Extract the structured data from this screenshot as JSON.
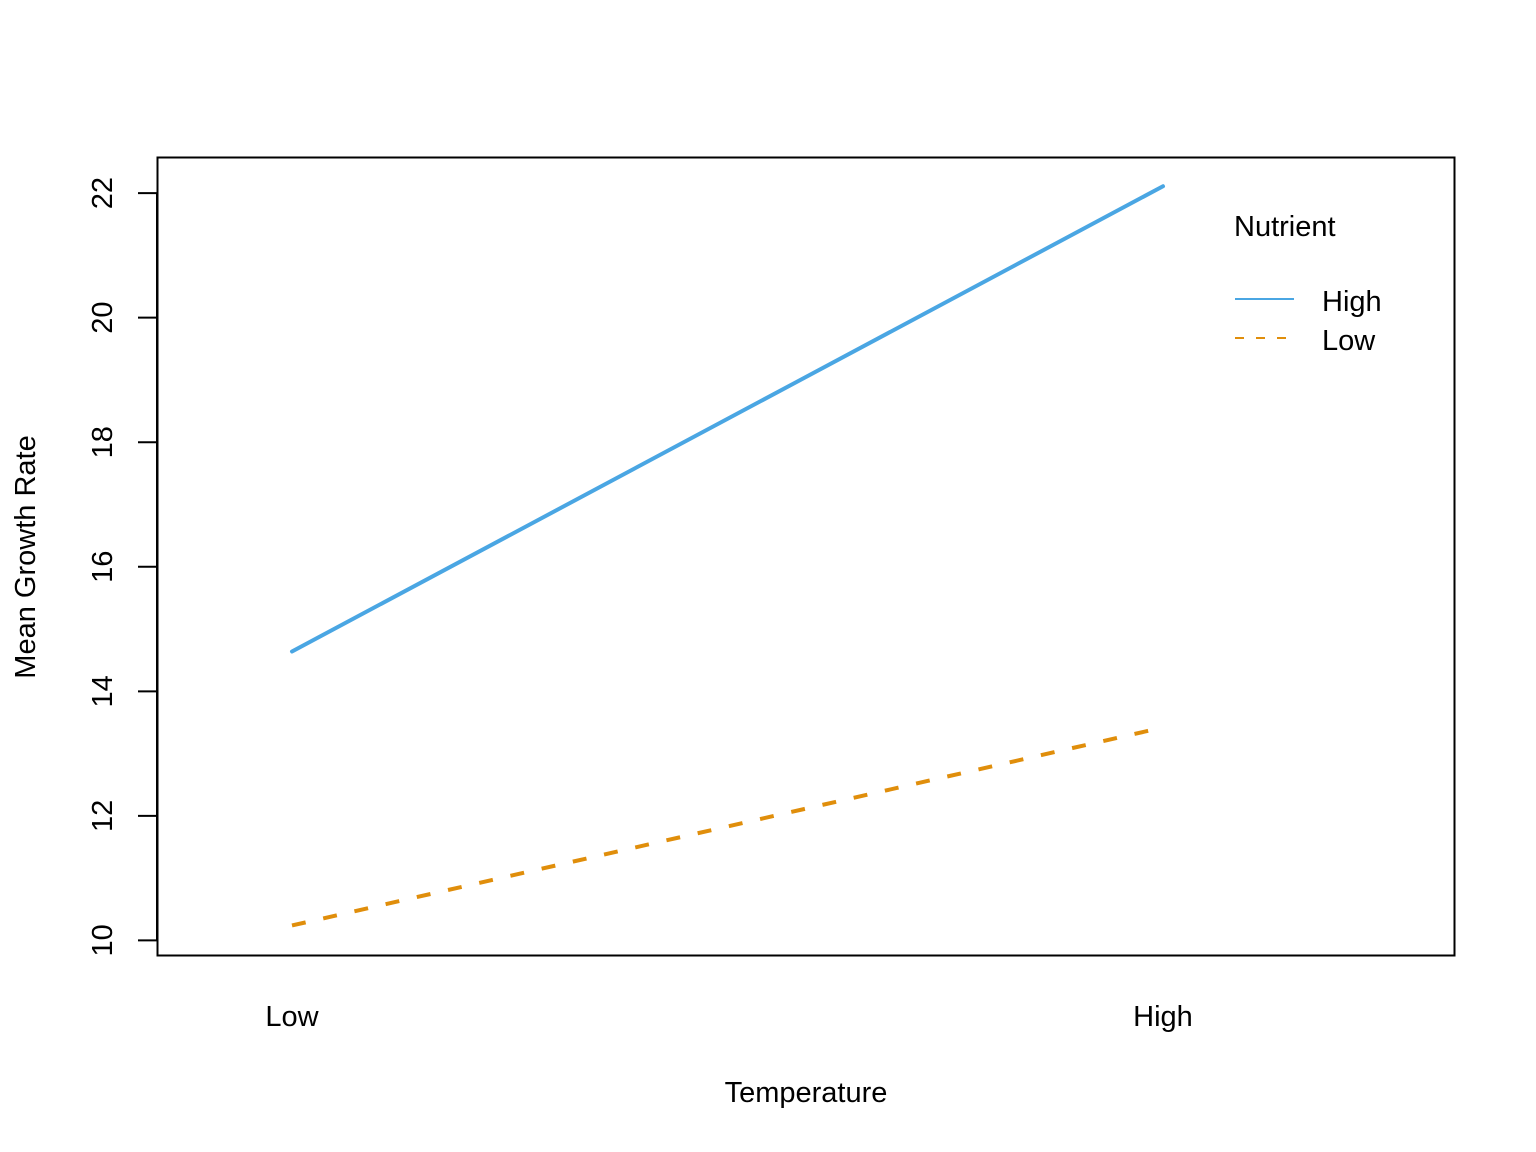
{
  "chart_data": {
    "type": "line",
    "title": "",
    "xlabel": "Temperature",
    "ylabel": "Mean Growth Rate",
    "categories": [
      "Low",
      "High"
    ],
    "series": [
      {
        "name": "High",
        "values": [
          14.64,
          22.11
        ],
        "color": "#4aa6e3",
        "dash": "solid"
      },
      {
        "name": "Low",
        "values": [
          10.24,
          13.42
        ],
        "color": "#e08e0b",
        "dash": "dashed"
      }
    ],
    "ylim": [
      9.75,
      22.58
    ],
    "yticks": [
      "10",
      "12",
      "14",
      "16",
      "18",
      "20",
      "22"
    ],
    "grid": false,
    "legend": {
      "title": "Nutrient",
      "placement": "top-right"
    }
  }
}
